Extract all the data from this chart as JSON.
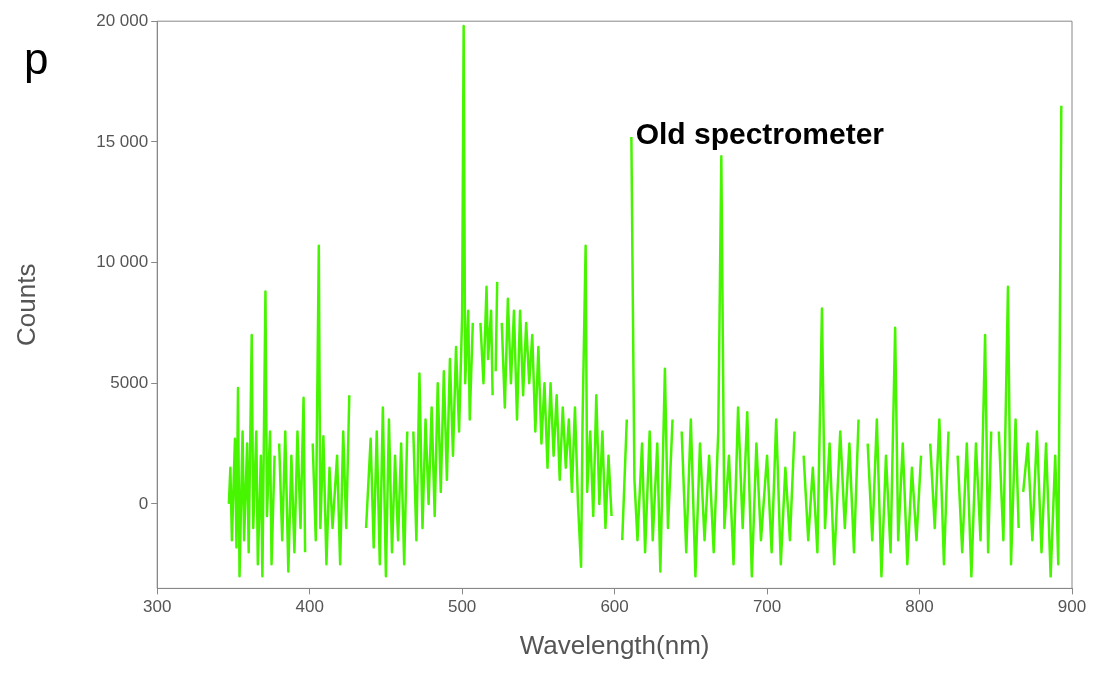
{
  "chart_data": {
    "type": "line",
    "xlabel": "Wavelength(nm)",
    "ylabel": "Counts",
    "annotations": [
      "Old spectrometer",
      "p"
    ],
    "xlim": [
      300,
      900
    ],
    "xticks": [
      300,
      400,
      500,
      600,
      700,
      800,
      900
    ],
    "ylim": [
      -3500,
      20000
    ],
    "yticks": [
      0,
      5000,
      {
        "value": 10000,
        "label": "10 000"
      },
      {
        "value": 15000,
        "label": "15 000"
      },
      {
        "value": 20000,
        "label": "20 000"
      }
    ],
    "marker": "none",
    "line_style": "solid",
    "legend": false,
    "series": [
      {
        "color": "#47f500",
        "x": [
          347,
          348,
          349,
          351,
          352,
          353,
          354,
          356,
          357,
          359,
          360,
          362,
          363,
          365,
          366,
          368,
          369,
          371,
          372,
          374,
          375,
          377,
          378,
          380,
          382,
          384,
          386,
          388,
          390,
          392,
          394,
          396,
          397,
          399,
          400,
          402,
          404,
          406,
          407,
          409,
          411,
          413,
          415,
          418,
          420,
          422,
          424,
          426,
          428,
          432,
          436,
          437,
          440,
          442,
          444,
          446,
          448,
          450,
          452,
          454,
          456,
          458,
          460,
          462,
          464,
          466,
          468,
          470,
          472,
          474,
          476,
          478,
          480,
          482,
          484,
          486,
          488,
          490,
          492,
          494,
          496,
          498,
          500,
          501,
          502,
          504,
          505,
          507,
          508,
          511,
          512,
          514,
          516,
          517,
          519,
          520,
          521,
          522,
          523,
          525,
          526,
          528,
          530,
          532,
          534,
          536,
          538,
          540,
          542,
          544,
          546,
          548,
          550,
          552,
          554,
          556,
          558,
          560,
          562,
          564,
          566,
          568,
          570,
          572,
          574,
          576,
          578,
          579,
          581,
          582,
          584,
          586,
          588,
          590,
          592,
          594,
          596,
          598,
          600,
          603,
          605,
          608,
          610,
          611,
          613,
          615,
          618,
          620,
          623,
          625,
          628,
          630,
          633,
          635,
          638,
          641,
          644,
          647,
          650,
          653,
          656,
          659,
          662,
          665,
          668,
          670,
          672,
          675,
          678,
          681,
          684,
          687,
          690,
          693,
          696,
          700,
          703,
          706,
          709,
          712,
          715,
          718,
          721,
          724,
          727,
          730,
          733,
          736,
          738,
          741,
          744,
          748,
          751,
          754,
          757,
          760,
          763,
          766,
          769,
          772,
          775,
          778,
          781,
          784,
          786,
          789,
          792,
          795,
          798,
          801,
          804,
          807,
          810,
          813,
          816,
          819,
          822,
          825,
          828,
          831,
          834,
          837,
          840,
          843,
          845,
          847,
          849,
          852,
          855,
          858,
          860,
          863,
          865,
          866,
          868,
          871,
          874,
          877,
          880,
          883,
          886,
          889,
          891,
          893
        ],
        "values": [
          0,
          1500,
          -1500,
          2700,
          -1800,
          4800,
          -3000,
          3000,
          -1500,
          2500,
          -2000,
          7000,
          -1000,
          3000,
          -2500,
          2000,
          -3000,
          8800,
          -500,
          3000,
          -2500,
          2000,
          null,
          2500,
          -1500,
          3000,
          -2800,
          2000,
          -2000,
          3000,
          -1000,
          4400,
          -2000,
          null,
          null,
          2500,
          -1500,
          10700,
          -1000,
          2800,
          -2500,
          1500,
          -1000,
          2000,
          -2500,
          3000,
          -1000,
          4500,
          null,
          null,
          null,
          -1000,
          2700,
          -1800,
          3000,
          -2500,
          4000,
          -3000,
          3500,
          -2000,
          2000,
          -1500,
          2500,
          -2500,
          3000,
          null,
          3000,
          -1500,
          5400,
          -1000,
          3500,
          0,
          4000,
          -500,
          5000,
          500,
          5500,
          1000,
          6000,
          2000,
          6500,
          3000,
          7800,
          19800,
          5000,
          8000,
          3500,
          7500,
          null,
          null,
          7500,
          5000,
          9000,
          6000,
          8000,
          4500,
          null,
          5500,
          9200,
          null,
          7500,
          4000,
          8500,
          5000,
          8000,
          3500,
          8000,
          4500,
          7500,
          5000,
          7000,
          3000,
          6500,
          2500,
          5000,
          1500,
          5000,
          2000,
          4500,
          1000,
          4000,
          1500,
          3500,
          500,
          4000,
          0,
          -2600,
          3500,
          10700,
          500,
          3000,
          -500,
          4500,
          0,
          3000,
          -1000,
          2000,
          -500,
          null,
          null,
          -1500,
          3500,
          null,
          15200,
          1000,
          -1500,
          2500,
          -2000,
          3000,
          -1500,
          2500,
          -2800,
          5600,
          -1000,
          3500,
          null,
          3000,
          -2000,
          3500,
          -3000,
          2500,
          -1500,
          2000,
          -2000,
          3000,
          14400,
          -1000,
          2000,
          -2500,
          4000,
          -1000,
          3800,
          -3000,
          2500,
          -1500,
          2000,
          -2000,
          3500,
          -2500,
          1500,
          -1500,
          3000,
          null,
          2000,
          -1500,
          1500,
          -2000,
          8100,
          -1000,
          2500,
          -2500,
          3000,
          -1000,
          2500,
          -2000,
          3500,
          null,
          2500,
          -1500,
          3500,
          -3000,
          2000,
          -2000,
          7300,
          -1500,
          2500,
          -2500,
          1500,
          -1500,
          2000,
          null,
          2500,
          -1000,
          3500,
          -2500,
          3000,
          null,
          2000,
          -2000,
          2500,
          -3000,
          2500,
          -1500,
          7000,
          -2000,
          3000,
          null,
          3000,
          -1500,
          9000,
          -2500,
          3500,
          -1000,
          null,
          500,
          2500,
          -1500,
          3000,
          -2000,
          2500,
          -3000,
          2000,
          -2500,
          16500
        ]
      }
    ]
  }
}
